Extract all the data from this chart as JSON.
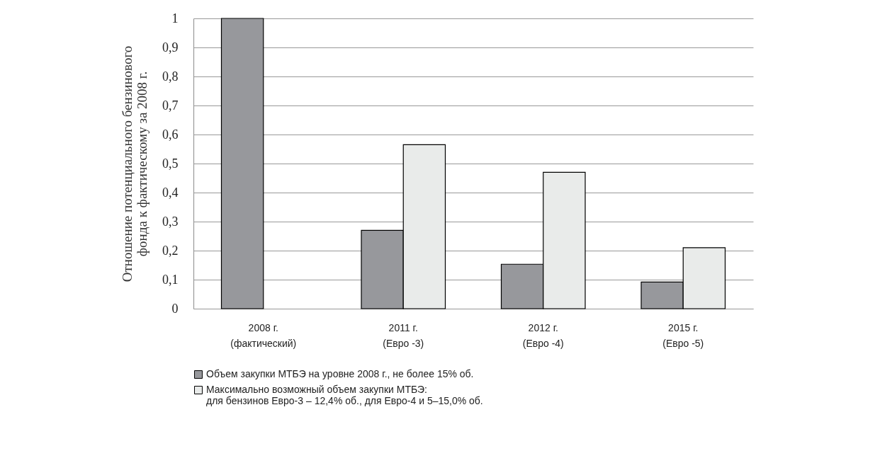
{
  "chart_data": {
    "type": "bar",
    "ylabel": "Отношение потенциального бензинового\nфонда к фактическому за 2008 г.",
    "categories": [
      "2008 г.\n(фактический)",
      "2011 г.\n(Евро -3)",
      "2012 г.\n(Евро -4)",
      "2015 г.\n(Евро -5)"
    ],
    "series": [
      {
        "name": "Объем закупки МТБЭ на уровне 2008 г., не более 15% об.",
        "color": "#97989c",
        "values": [
          1.0,
          0.27,
          0.153,
          0.092
        ]
      },
      {
        "name": "Максимально возможный объем закупки МТБЭ:\nдля бензинов Евро-3 – 12,4% об., для Евро-4 и 5–15,0% об.",
        "color": "#e9ebea",
        "values": [
          null,
          0.565,
          0.47,
          0.21
        ]
      }
    ],
    "ylim": [
      0,
      1
    ],
    "yticks": [
      0,
      {
        "value": 0.1,
        "label": "0,1"
      },
      {
        "value": 0.2,
        "label": "0,2"
      },
      {
        "value": 0.3,
        "label": "0,3"
      },
      {
        "value": 0.4,
        "label": "0,4"
      },
      {
        "value": 0.5,
        "label": "0,5"
      },
      {
        "value": 0.6,
        "label": "0,6"
      },
      {
        "value": 0.7,
        "label": "0,7"
      },
      {
        "value": 0.8,
        "label": "0,8"
      },
      {
        "value": 0.9,
        "label": "0,9"
      },
      1
    ],
    "grid": "y",
    "legend": "bottom"
  }
}
